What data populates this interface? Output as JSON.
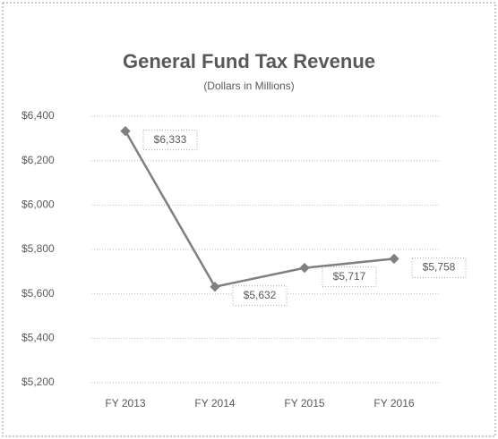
{
  "chart_data": {
    "type": "line",
    "title": "General Fund Tax Revenue",
    "subtitle": "(Dollars in Millions)",
    "categories": [
      "FY 2013",
      "FY 2014",
      "FY 2015",
      "FY 2016"
    ],
    "values": [
      6333,
      5632,
      5717,
      5758
    ],
    "value_labels": [
      "$6,333",
      "$5,632",
      "$5,717",
      "$5,758"
    ],
    "color": "#7f7f7f",
    "ylim": [
      5200,
      6400
    ],
    "yticks": [
      {
        "value": 5200,
        "label": "$5,200"
      },
      {
        "value": 5400,
        "label": "$5,400"
      },
      {
        "value": 5600,
        "label": "$5,600"
      },
      {
        "value": 5800,
        "label": "$5,800"
      },
      {
        "value": 6000,
        "label": "$6,000"
      },
      {
        "value": 6200,
        "label": "$6,200"
      },
      {
        "value": 6400,
        "label": "$6,400"
      }
    ],
    "grid": true
  }
}
